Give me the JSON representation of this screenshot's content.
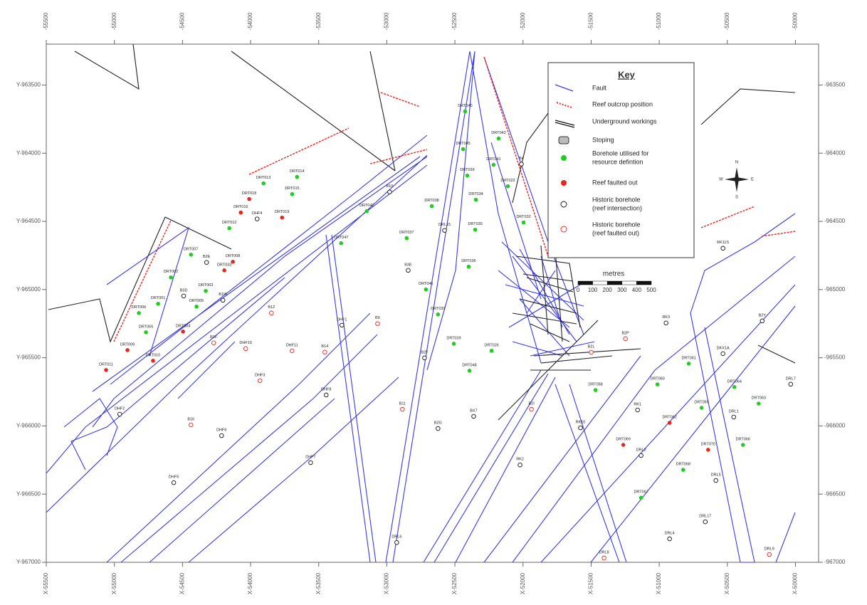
{
  "map": {
    "xlim": [
      -55500,
      -49830
    ],
    "ylim": [
      -967000,
      -963200
    ],
    "top_ticks": [
      -55500,
      -55000,
      -54500,
      -54000,
      -53500,
      -53000,
      -52500,
      -52000,
      -51500,
      -51000,
      -50500,
      -50000
    ],
    "bottom_ticks": [
      {
        "value": -55500,
        "label": "X-55500"
      },
      {
        "value": -55000,
        "label": "X-55000"
      },
      {
        "value": -54500,
        "label": "X-54500"
      },
      {
        "value": -54000,
        "label": "X-54000"
      },
      {
        "value": -53500,
        "label": "X-53500"
      },
      {
        "value": -53000,
        "label": "X-53000"
      },
      {
        "value": -52500,
        "label": "X-52500"
      },
      {
        "value": -52000,
        "label": "X-52000"
      },
      {
        "value": -51500,
        "label": "X-51500"
      },
      {
        "value": -51000,
        "label": "X-51000"
      },
      {
        "value": -50500,
        "label": "X-50500"
      },
      {
        "value": -50000,
        "label": "X-50000"
      }
    ],
    "left_ticks": [
      {
        "value": -963500,
        "label": "Y-963500"
      },
      {
        "value": -964000,
        "label": "Y-964000"
      },
      {
        "value": -964500,
        "label": "Y-964500"
      },
      {
        "value": -965000,
        "label": "Y-965000"
      },
      {
        "value": -965500,
        "label": "Y-965500"
      },
      {
        "value": -966000,
        "label": "Y-966000"
      },
      {
        "value": -966500,
        "label": "Y-966500"
      },
      {
        "value": -967000,
        "label": "Y-967000"
      }
    ],
    "right_ticks": [
      -963500,
      -964000,
      -964500,
      -965000,
      -965500,
      -966000,
      -966500,
      -967000
    ],
    "key": {
      "title": "Key",
      "items": [
        {
          "label": [
            "Fault"
          ],
          "symbol": "fault",
          "color": "#3a3adf"
        },
        {
          "label": [
            "Reef outcrop position"
          ],
          "symbol": "reef",
          "color": "#e8261e"
        },
        {
          "label": [
            "Underground workings"
          ],
          "symbol": "workings",
          "color": "#111111"
        },
        {
          "label": [
            "Stoping"
          ],
          "symbol": "stoping",
          "color": "#bbbbbb"
        },
        {
          "label": [
            "Borehole utilised for",
            "resource defintion"
          ],
          "symbol": "utilised",
          "color": "#22cc22"
        },
        {
          "label": [
            "Reef faulted out"
          ],
          "symbol": "faulted",
          "color": "#e8261e"
        },
        {
          "label": [
            "Historic borehole",
            "(reef intersection)"
          ],
          "symbol": "historic",
          "color": "#111111"
        },
        {
          "label": [
            "Historic borehole",
            "(reef faulted out)"
          ],
          "symbol": "historic_faulted",
          "color": "#e8261e"
        }
      ]
    },
    "scale_bar": {
      "title": "metres",
      "labels": [
        0,
        100,
        200,
        300,
        400,
        500
      ]
    },
    "compass": {
      "n": "N",
      "s": "S",
      "e": "E",
      "w": "W"
    },
    "boreholes": [
      {
        "label": "DRT040",
        "x": -52425,
        "y": -963693,
        "kind": "utilised"
      },
      {
        "label": "DRT043",
        "x": -52179,
        "y": -963892,
        "kind": "utilised"
      },
      {
        "label": "DRT045",
        "x": -52440,
        "y": -963970,
        "kind": "utilised"
      },
      {
        "label": "DRT041",
        "x": -52216,
        "y": -964085,
        "kind": "utilised"
      },
      {
        "label": "DRT039",
        "x": -52409,
        "y": -964164,
        "kind": "utilised"
      },
      {
        "label": "DRT022",
        "x": -52111,
        "y": -964242,
        "kind": "utilised"
      },
      {
        "label": "DRT034",
        "x": -52346,
        "y": -964341,
        "kind": "utilised"
      },
      {
        "label": "DRT038",
        "x": -52670,
        "y": -964388,
        "kind": "utilised"
      },
      {
        "label": "DRT032",
        "x": -51996,
        "y": -964508,
        "kind": "utilised"
      },
      {
        "label": "DRT035",
        "x": -52351,
        "y": -964561,
        "kind": "utilised"
      },
      {
        "label": "DRT037",
        "x": -52854,
        "y": -964623,
        "kind": "utilised"
      },
      {
        "label": "DRT036",
        "x": -52399,
        "y": -964832,
        "kind": "utilised"
      },
      {
        "label": "DRT046",
        "x": -52713,
        "y": -964999,
        "kind": "utilised"
      },
      {
        "label": "DRT030",
        "x": -52624,
        "y": -965182,
        "kind": "utilised"
      },
      {
        "label": "DRT029",
        "x": -52508,
        "y": -965397,
        "kind": "utilised"
      },
      {
        "label": "DRT026",
        "x": -52231,
        "y": -965449,
        "kind": "utilised"
      },
      {
        "label": "DRT048",
        "x": -52393,
        "y": -965595,
        "kind": "utilised"
      },
      {
        "label": "DRT014",
        "x": -53659,
        "y": -964174,
        "kind": "utilised"
      },
      {
        "label": "DRT013",
        "x": -53905,
        "y": -964221,
        "kind": "utilised"
      },
      {
        "label": "DRT015",
        "x": -53695,
        "y": -964300,
        "kind": "utilised"
      },
      {
        "label": "DRT042",
        "x": -53147,
        "y": -964425,
        "kind": "utilised"
      },
      {
        "label": "DRT047",
        "x": -53335,
        "y": -964660,
        "kind": "utilised"
      },
      {
        "label": "DRT012",
        "x": -54156,
        "y": -964550,
        "kind": "utilised"
      },
      {
        "label": "DRT007",
        "x": -54438,
        "y": -964744,
        "kind": "utilised"
      },
      {
        "label": "DRT002",
        "x": -54585,
        "y": -964911,
        "kind": "utilised"
      },
      {
        "label": "DRT003",
        "x": -54329,
        "y": -965010,
        "kind": "utilised"
      },
      {
        "label": "DRT001",
        "x": -54679,
        "y": -965104,
        "kind": "utilised"
      },
      {
        "label": "DRT005",
        "x": -54397,
        "y": -965125,
        "kind": "utilised"
      },
      {
        "label": "DRT006",
        "x": -54820,
        "y": -965172,
        "kind": "utilised"
      },
      {
        "label": "DRT065",
        "x": -54768,
        "y": -965313,
        "kind": "utilised"
      },
      {
        "label": "DRT058",
        "x": -51468,
        "y": -965737,
        "kind": "utilised"
      },
      {
        "label": "DRT060",
        "x": -51013,
        "y": -965695,
        "kind": "utilised"
      },
      {
        "label": "DRT061",
        "x": -50783,
        "y": -965543,
        "kind": "utilised"
      },
      {
        "label": "DRT059",
        "x": -50689,
        "y": -965867,
        "kind": "utilised"
      },
      {
        "label": "DRT064",
        "x": -50448,
        "y": -965715,
        "kind": "utilised"
      },
      {
        "label": "DRT063",
        "x": -50270,
        "y": -965836,
        "kind": "utilised"
      },
      {
        "label": "DRT066",
        "x": -50385,
        "y": -966139,
        "kind": "utilised"
      },
      {
        "label": "DRT068",
        "x": -50824,
        "y": -966322,
        "kind": "utilised"
      },
      {
        "label": "DRT067",
        "x": -51133,
        "y": -966526,
        "kind": "utilised"
      },
      {
        "label": "DRT018",
        "x": -54010,
        "y": -964336,
        "kind": "faulted"
      },
      {
        "label": "DRT016",
        "x": -54072,
        "y": -964435,
        "kind": "faulted"
      },
      {
        "label": "DRT019",
        "x": -53769,
        "y": -964472,
        "kind": "faulted"
      },
      {
        "label": "DRT008",
        "x": -54130,
        "y": -964796,
        "kind": "faulted"
      },
      {
        "label": "DRT033",
        "x": -54193,
        "y": -964859,
        "kind": "faulted"
      },
      {
        "label": "DRT004",
        "x": -54496,
        "y": -965308,
        "kind": "faulted"
      },
      {
        "label": "DRT010",
        "x": -54716,
        "y": -965522,
        "kind": "faulted"
      },
      {
        "label": "DRT011",
        "x": -55061,
        "y": -965590,
        "kind": "faulted"
      },
      {
        "label": "DRT009",
        "x": -54904,
        "y": -965444,
        "kind": "faulted"
      },
      {
        "label": "DRT062",
        "x": -50924,
        "y": -965977,
        "kind": "faulted"
      },
      {
        "label": "DRT070",
        "x": -50641,
        "y": -966175,
        "kind": "faulted"
      },
      {
        "label": "DRT069",
        "x": -51264,
        "y": -966139,
        "kind": "faulted"
      },
      {
        "label": "B10",
        "x": -52979,
        "y": -964284,
        "kind": "historic"
      },
      {
        "label": "DRL15",
        "x": -52576,
        "y": -964566,
        "kind": "historic"
      },
      {
        "label": "B3E",
        "x": -52843,
        "y": -964859,
        "kind": "historic"
      },
      {
        "label": "B4",
        "x": -52012,
        "y": -964080,
        "kind": "historic"
      },
      {
        "label": "DHF4",
        "x": -53952,
        "y": -964482,
        "kind": "historic"
      },
      {
        "label": "B2E",
        "x": -54323,
        "y": -964801,
        "kind": "historic"
      },
      {
        "label": "B1W",
        "x": -54203,
        "y": -965078,
        "kind": "historic"
      },
      {
        "label": "B3D",
        "x": -54491,
        "y": -965047,
        "kind": "historic"
      },
      {
        "label": "DHF1",
        "x": -53330,
        "y": -965261,
        "kind": "historic"
      },
      {
        "label": "DHF8",
        "x": -53445,
        "y": -965773,
        "kind": "historic"
      },
      {
        "label": "DHF2",
        "x": -54961,
        "y": -965914,
        "kind": "historic"
      },
      {
        "label": "DHF6",
        "x": -54213,
        "y": -966071,
        "kind": "historic"
      },
      {
        "label": "DHF7",
        "x": -53559,
        "y": -966269,
        "kind": "historic"
      },
      {
        "label": "DHF5",
        "x": -54564,
        "y": -966416,
        "kind": "historic"
      },
      {
        "label": "B2F",
        "x": -52723,
        "y": -965501,
        "kind": "historic"
      },
      {
        "label": "B2G",
        "x": -52624,
        "y": -966019,
        "kind": "historic"
      },
      {
        "label": "BX7",
        "x": -52362,
        "y": -965930,
        "kind": "historic"
      },
      {
        "label": "DRL4",
        "x": -50924,
        "y": -966828,
        "kind": "historic"
      },
      {
        "label": "DRL17",
        "x": -50662,
        "y": -966703,
        "kind": "historic"
      },
      {
        "label": "DRL2",
        "x": -51133,
        "y": -966217,
        "kind": "historic"
      },
      {
        "label": "DRL1",
        "x": -50453,
        "y": -965935,
        "kind": "historic"
      },
      {
        "label": "DRL5",
        "x": -50584,
        "y": -966400,
        "kind": "historic"
      },
      {
        "label": "DRL7",
        "x": -50035,
        "y": -965694,
        "kind": "historic"
      },
      {
        "label": "RK1",
        "x": -51159,
        "y": -965883,
        "kind": "historic"
      },
      {
        "label": "RK3",
        "x": -50950,
        "y": -965245,
        "kind": "historic"
      },
      {
        "label": "B2Y",
        "x": -50244,
        "y": -965230,
        "kind": "historic"
      },
      {
        "label": "DKX1A",
        "x": -50532,
        "y": -965470,
        "kind": "historic"
      },
      {
        "label": "RK11S",
        "x": -50532,
        "y": -964697,
        "kind": "historic"
      },
      {
        "label": "RK2",
        "x": -52022,
        "y": -966286,
        "kind": "historic"
      },
      {
        "label": "RK10",
        "x": -51578,
        "y": -966014,
        "kind": "historic"
      },
      {
        "label": "DRL6",
        "x": -52927,
        "y": -966855,
        "kind": "historic"
      },
      {
        "label": "B9",
        "x": -53068,
        "y": -965250,
        "kind": "historic_faulted"
      },
      {
        "label": "B11",
        "x": -52885,
        "y": -965878,
        "kind": "historic_faulted"
      },
      {
        "label": "B16",
        "x": -54438,
        "y": -965992,
        "kind": "historic_faulted"
      },
      {
        "label": "B12",
        "x": -53847,
        "y": -965172,
        "kind": "historic_faulted"
      },
      {
        "label": "B1F",
        "x": -54271,
        "y": -965391,
        "kind": "historic_faulted"
      },
      {
        "label": "DHF10",
        "x": -54036,
        "y": -965433,
        "kind": "historic_faulted"
      },
      {
        "label": "DHF11",
        "x": -53696,
        "y": -965449,
        "kind": "historic_faulted"
      },
      {
        "label": "B14",
        "x": -53455,
        "y": -965459,
        "kind": "historic_faulted"
      },
      {
        "label": "DHF3",
        "x": -53931,
        "y": -965668,
        "kind": "historic_faulted"
      },
      {
        "label": "B2I",
        "x": -51938,
        "y": -965878,
        "kind": "historic_faulted"
      },
      {
        "label": "DRL8",
        "x": -51405,
        "y": -966969,
        "kind": "historic_faulted"
      },
      {
        "label": "DRL9",
        "x": -50192,
        "y": -966943,
        "kind": "historic_faulted"
      },
      {
        "label": "B2P",
        "x": -51248,
        "y": -965360,
        "kind": "historic_faulted"
      },
      {
        "label": "B2L",
        "x": -51499,
        "y": -965460,
        "kind": "historic_faulted"
      }
    ]
  }
}
